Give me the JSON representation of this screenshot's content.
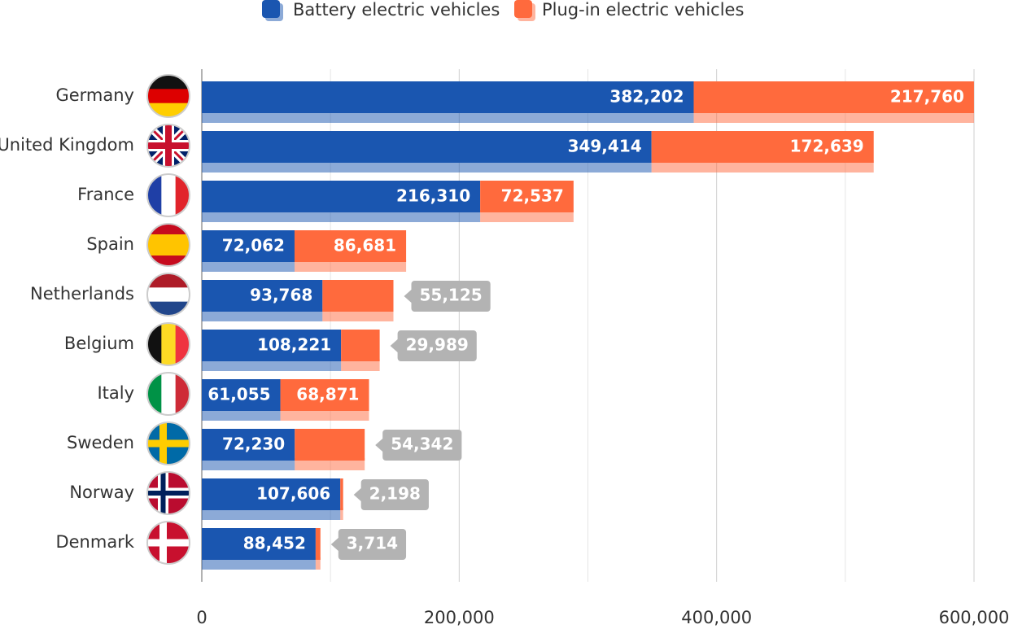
{
  "chart_data": {
    "type": "stacked-bar-horizontal",
    "categories": [
      "Germany",
      "United Kingdom",
      "France",
      "Spain",
      "Netherlands",
      "Belgium",
      "Italy",
      "Sweden",
      "Norway",
      "Denmark"
    ],
    "series": [
      {
        "name": "Battery electric vehicles",
        "color": "#1a56b0",
        "values": [
          382202,
          349414,
          216310,
          72062,
          93768,
          108221,
          61055,
          72230,
          107606,
          88452
        ],
        "value_labels": [
          "382,202",
          "349,414",
          "216,310",
          "72,062",
          "93,768",
          "108,221",
          "61,055",
          "72,230",
          "107,606",
          "88,452"
        ]
      },
      {
        "name": "Plug-in electric vehicles",
        "color": "#ff6a3d",
        "values": [
          217760,
          172639,
          72537,
          86681,
          55125,
          29989,
          68871,
          54342,
          2198,
          3714
        ],
        "value_labels": [
          "217,760",
          "172,639",
          "72,537",
          "86,681",
          "55,125",
          "29,989",
          "68,871",
          "54,342",
          "2,198",
          "3,714"
        ]
      }
    ],
    "xlim": [
      0,
      600000
    ],
    "xticks": [
      0,
      {
        "value": 200000,
        "label": "200,000"
      },
      {
        "value": 400000,
        "label": "400,000"
      },
      {
        "value": 600000,
        "label": "600,000"
      }
    ],
    "minor_xticks": [
      100000,
      300000,
      500000
    ],
    "grid": true,
    "legend": "top"
  }
}
